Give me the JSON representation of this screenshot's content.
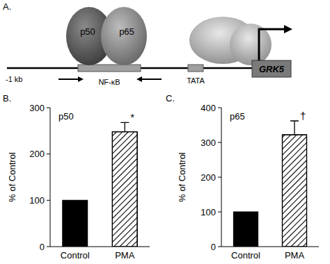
{
  "diagram": {
    "panel_label": "A.",
    "proteins": [
      "p50",
      "p65"
    ],
    "scale_label": "-1 kb",
    "elements": [
      "NF-κB",
      "TATA"
    ],
    "gene": "GRK5"
  },
  "chart_data": [
    {
      "type": "bar",
      "title": "p50",
      "y_label": "% of Control",
      "categories": [
        "Control",
        "PMA"
      ],
      "values": [
        100,
        248
      ],
      "errors": [
        null,
        20
      ],
      "colors": [
        "#000000",
        "#ffffff"
      ],
      "ylim": [
        0,
        300
      ],
      "yticks": [
        0,
        100,
        200,
        300
      ],
      "annotations": [
        {
          "text": "B."
        },
        {
          "text": "*",
          "category": "PMA"
        }
      ]
    },
    {
      "type": "bar",
      "title": "p65",
      "y_label": "% of Control",
      "categories": [
        "Control",
        "PMA"
      ],
      "values": [
        100,
        322
      ],
      "errors": [
        null,
        40
      ],
      "colors": [
        "#000000",
        "#ffffff"
      ],
      "ylim": [
        0,
        400
      ],
      "yticks": [
        0,
        100,
        200,
        300,
        400
      ],
      "annotations": [
        {
          "text": "C."
        },
        {
          "text": "†",
          "category": "PMA"
        }
      ]
    }
  ]
}
